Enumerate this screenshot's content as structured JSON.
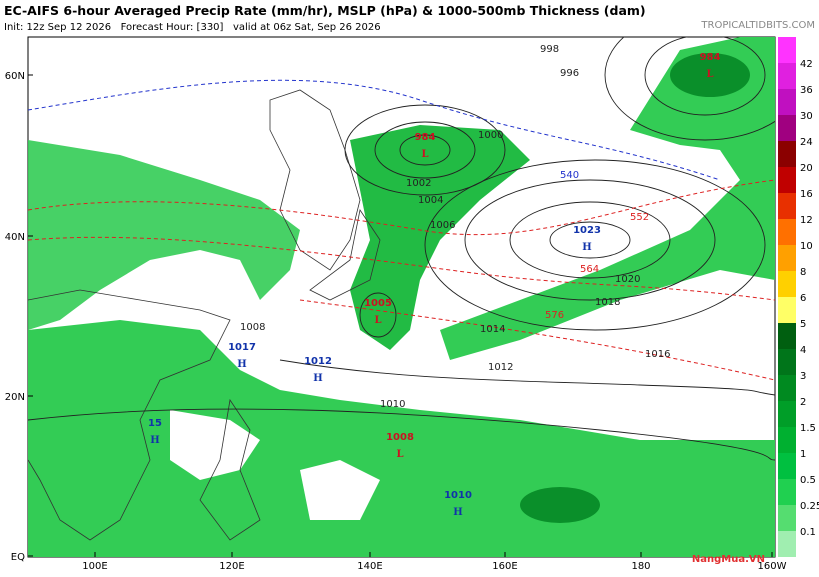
{
  "header": {
    "title": "EC-AIFS 6-hour Averaged Precip Rate (mm/hr), MSLP (hPa) & 1000-500mb Thickness (dam)",
    "info": "Init: 12z Sep 12 2026   Forecast Hour: [330]   valid at 06z Sat, Sep 26 2026",
    "site": "TROPICALTIDBITS.COM"
  },
  "map": {
    "lat_labels": [
      "60N",
      "40N",
      "20N",
      "EQ"
    ],
    "lon_labels": [
      "100E",
      "120E",
      "140E",
      "160E",
      "180",
      "160W"
    ],
    "centers": [
      {
        "type": "L",
        "value": "984"
      },
      {
        "type": "L",
        "value": "984"
      },
      {
        "type": "H",
        "value": "1023"
      },
      {
        "type": "L",
        "value": "1005"
      },
      {
        "type": "H",
        "value": "1017"
      },
      {
        "type": "H",
        "value": "1012"
      },
      {
        "type": "L",
        "value": "1008"
      },
      {
        "type": "H",
        "value": "1010"
      },
      {
        "type": "H",
        "value": "15"
      }
    ],
    "isobar_labels": [
      "1020",
      "1018",
      "1016",
      "1014",
      "1012",
      "1010",
      "1008",
      "1006",
      "1004",
      "1002",
      "1000",
      "998",
      "996"
    ],
    "thickness_labels": [
      "564",
      "552",
      "576",
      "540"
    ]
  },
  "colorbar": {
    "labels": [
      "42",
      "36",
      "30",
      "24",
      "20",
      "16",
      "12",
      "10",
      "8",
      "6",
      "5",
      "4",
      "3",
      "2",
      "1.5",
      "1",
      "0.5",
      "0.25",
      "0.1"
    ]
  },
  "watermark": "NangMua.VN"
}
